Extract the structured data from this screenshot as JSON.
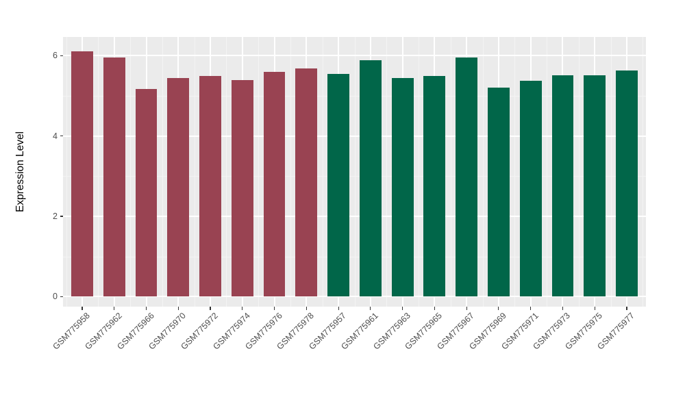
{
  "figure": {
    "background": "#FFFFFF",
    "panel_background": "#EBEBEB",
    "major_grid_color": "#FFFFFF",
    "minor_grid_color": "#F4F4F4",
    "tick_mark_color": "#333333",
    "tick_label_color": "#4D4D4D",
    "axis_title_color": "#000000"
  },
  "chart_data": {
    "type": "bar",
    "title": "",
    "xlabel": "",
    "ylabel": "Expression Level",
    "ylim": [
      0,
      6.4
    ],
    "yticks": [
      0,
      2,
      4,
      6
    ],
    "minor_yticks": [
      1,
      3,
      5
    ],
    "grid": "major white / minor faint, ggplot-style gray panel",
    "legend": "none",
    "categories": [
      "GSM775958",
      "GSM775962",
      "GSM775966",
      "GSM775970",
      "GSM775972",
      "GSM775974",
      "GSM775976",
      "GSM775978",
      "GSM775957",
      "GSM775961",
      "GSM775963",
      "GSM775965",
      "GSM775967",
      "GSM775969",
      "GSM775971",
      "GSM775973",
      "GSM775975",
      "GSM775977"
    ],
    "values": [
      6.11,
      5.95,
      5.17,
      5.44,
      5.49,
      5.39,
      5.6,
      5.69,
      5.55,
      5.88,
      5.45,
      5.5,
      5.95,
      5.21,
      5.37,
      5.52,
      5.52,
      5.64
    ],
    "bar_colors": [
      "#994352",
      "#994352",
      "#994352",
      "#994352",
      "#994352",
      "#994352",
      "#994352",
      "#994352",
      "#016649",
      "#016649",
      "#016649",
      "#016649",
      "#016649",
      "#016649",
      "#016649",
      "#016649",
      "#016649",
      "#016649"
    ],
    "group_palette": {
      "left_group_color": "#994352",
      "right_group_color": "#016649"
    }
  }
}
